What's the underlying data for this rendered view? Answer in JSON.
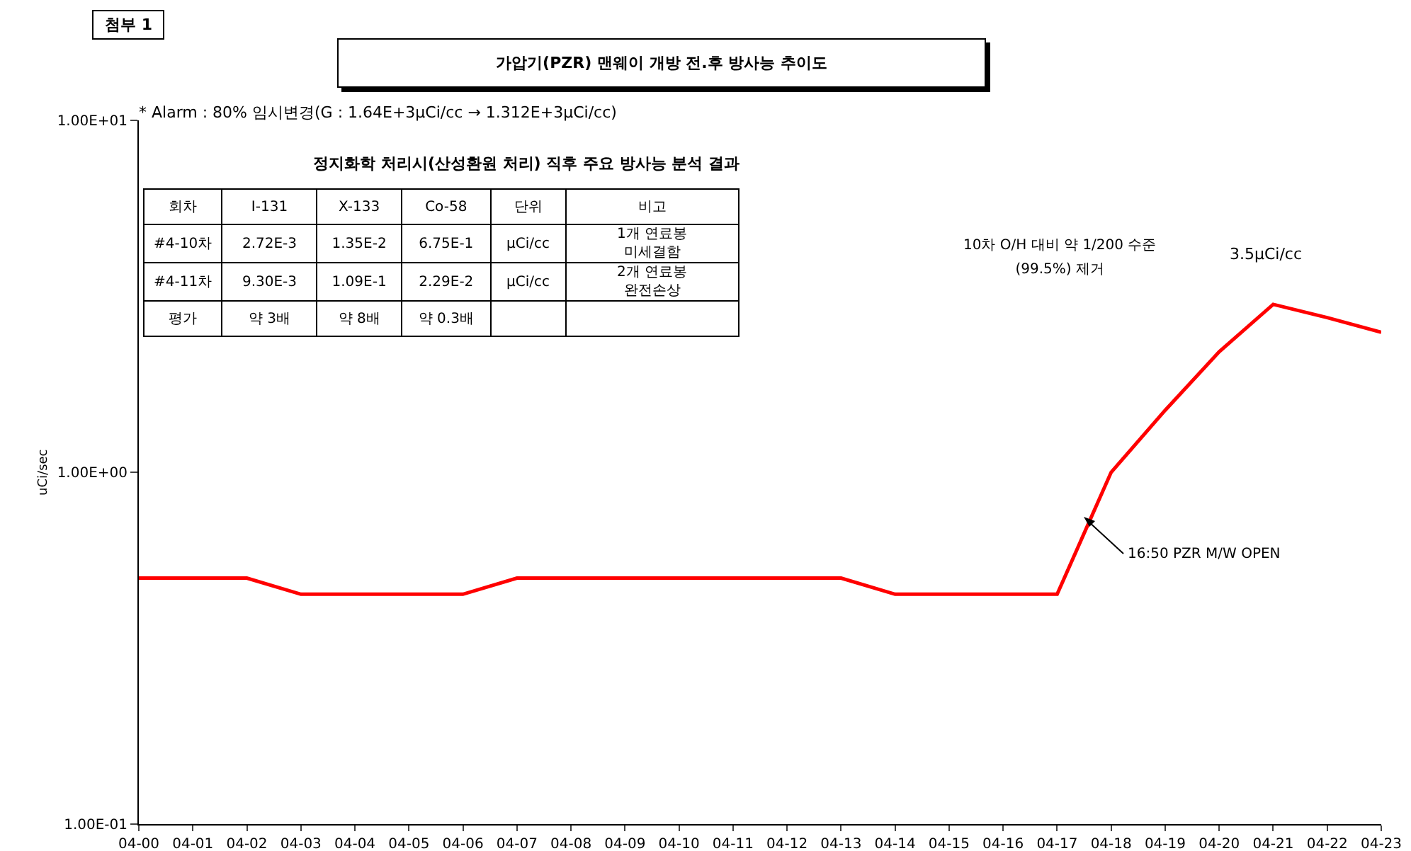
{
  "chart_data": [
    {
      "type": "line",
      "title": "가압기(PZR) 맨웨이 개방 전.후 방사능 추이도",
      "ylabel": "uCi/sec",
      "annotations": [
        "첨부 1",
        "* Alarm : 80% 임시변경(G : 1.64E+3µCi/cc → 1.312E+3µCi/cc)",
        "10차 O/H 대비 약 1/200 수준\n(99.5%) 제거",
        {
          "text": "3.5µCi/cc",
          "x": "04-21",
          "y": 3.0
        },
        "16:50 PZR M/W OPEN"
      ],
      "categories": [
        "04-00",
        "04-01",
        "04-02",
        "04-03",
        "04-04",
        "04-05",
        "04-06",
        "04-07",
        "04-08",
        "04-09",
        "04-10",
        "04-11",
        "04-12",
        "04-13",
        "04-14",
        "04-15",
        "04-16",
        "04-17",
        "04-18",
        "04-19",
        "04-20",
        "04-21",
        "04-22",
        "04-23"
      ],
      "series": [
        {
          "color": "#ff0000",
          "values": [
            0.5,
            0.5,
            0.5,
            0.45,
            0.45,
            0.45,
            0.45,
            0.5,
            0.5,
            0.5,
            0.5,
            0.5,
            0.5,
            0.5,
            0.45,
            0.45,
            0.45,
            0.45,
            1.0,
            1.5,
            2.2,
            3.0,
            2.75,
            2.5
          ]
        }
      ],
      "ylim": [
        0.1,
        10
      ],
      "yticks": [
        {
          "value": 0.1,
          "label": "1.00E-01"
        },
        {
          "value": 1,
          "label": "1.00E+00"
        },
        {
          "value": 10,
          "label": "1.00E+01"
        }
      ],
      "log": "y",
      "grid": false,
      "legend": false
    },
    {
      "type": "other",
      "title": "정지화학 처리시(산성환원 처리) 직후 주요 방사능 분석 결과",
      "annotations": [
        "회차",
        "I-131",
        "X-133",
        "Co-58",
        "단위",
        "비고",
        "#4-10차",
        "2.72E-3",
        "1.35E-2",
        "6.75E-1",
        "µCi/cc",
        "1개 연료봉\n미세결함",
        "#4-11차",
        "9.30E-3",
        "1.09E-1",
        "2.29E-2",
        "µCi/cc",
        "2개 연료봉\n완전손상",
        "평가",
        "약 3배",
        "약 8배",
        "약 0.3배"
      ]
    }
  ]
}
